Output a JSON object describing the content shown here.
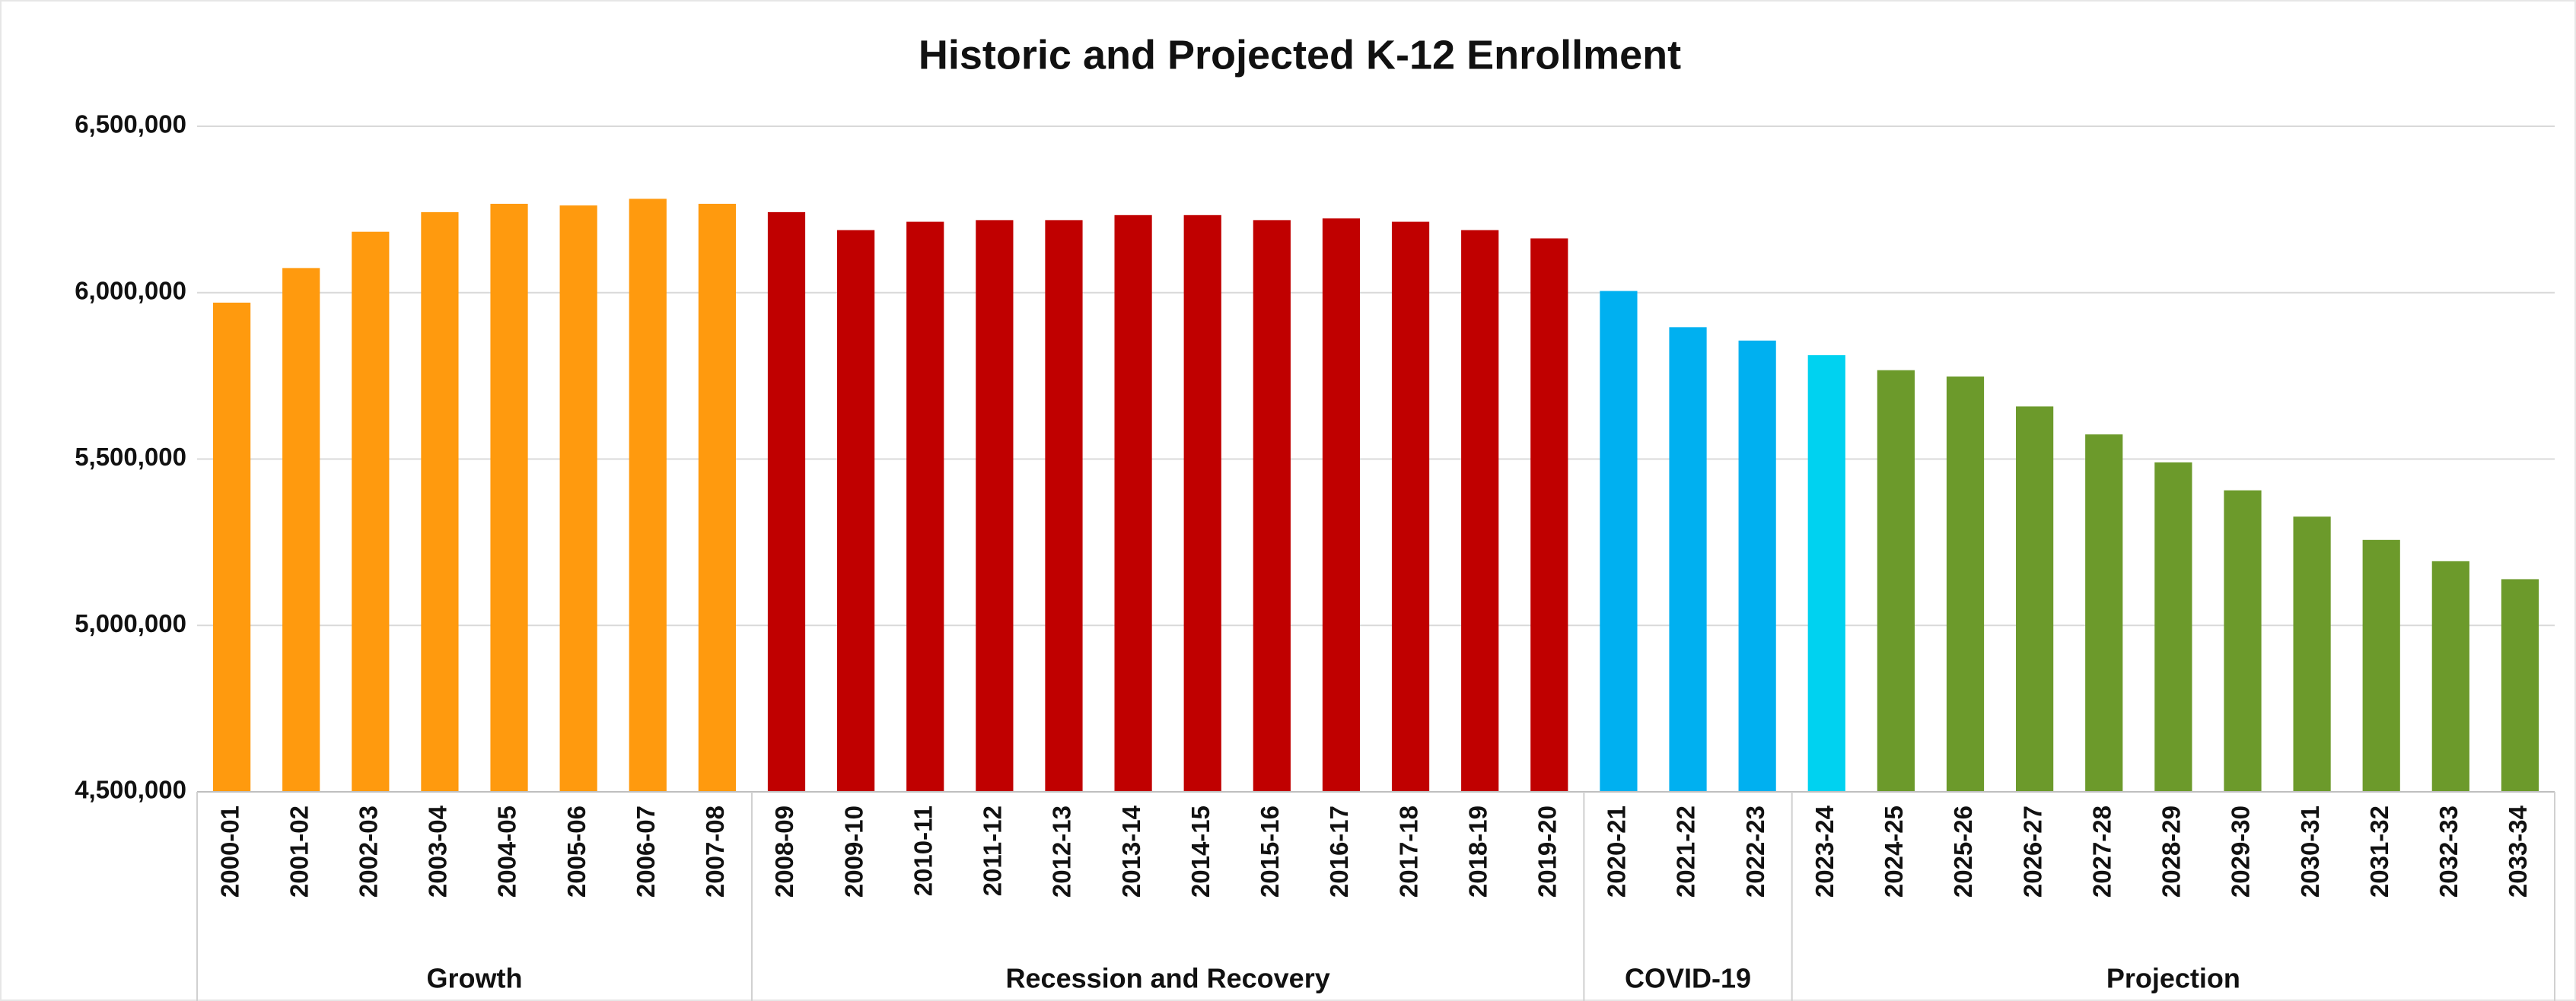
{
  "chart_data": {
    "type": "bar",
    "title": "Historic and Projected K-12 Enrollment",
    "categories": [
      "2000-01",
      "2001-02",
      "2002-03",
      "2003-04",
      "2004-05",
      "2005-06",
      "2006-07",
      "2007-08",
      "2008-09",
      "2009-10",
      "2010-11",
      "2011-12",
      "2012-13",
      "2013-14",
      "2014-15",
      "2015-16",
      "2016-17",
      "2017-18",
      "2018-19",
      "2019-20",
      "2020-21",
      "2021-22",
      "2022-23",
      "2023-24",
      "2024-25",
      "2025-26",
      "2026-27",
      "2027-28",
      "2028-29",
      "2029-30",
      "2030-31",
      "2031-32",
      "2032-33",
      "2033-34"
    ],
    "values": [
      5970000,
      6074000,
      6183000,
      6242000,
      6267000,
      6262000,
      6282000,
      6267000,
      6242000,
      6188000,
      6213000,
      6218000,
      6218000,
      6233000,
      6233000,
      6218000,
      6223000,
      6213000,
      6188000,
      6163000,
      6005000,
      5896000,
      5856000,
      5812000,
      5767000,
      5748000,
      5658000,
      5574000,
      5490000,
      5406000,
      5327000,
      5257000,
      5193000,
      5139000
    ],
    "colors": [
      "#ff9a0e",
      "#ff9a0e",
      "#ff9a0e",
      "#ff9a0e",
      "#ff9a0e",
      "#ff9a0e",
      "#ff9a0e",
      "#ff9a0e",
      "#c00000",
      "#c00000",
      "#c00000",
      "#c00000",
      "#c00000",
      "#c00000",
      "#c00000",
      "#c00000",
      "#c00000",
      "#c00000",
      "#c00000",
      "#c00000",
      "#00b0f0",
      "#00b0f0",
      "#00b0f0",
      "#00d2f0",
      "#6c9a2b",
      "#6c9a2b",
      "#6c9a2b",
      "#6c9a2b",
      "#6c9a2b",
      "#6c9a2b",
      "#6c9a2b",
      "#6c9a2b",
      "#6c9a2b",
      "#6c9a2b"
    ],
    "groups": [
      {
        "name": "Growth",
        "size": 8
      },
      {
        "name": "Recession and Recovery",
        "size": 12
      },
      {
        "name": "COVID-19",
        "size": 3
      },
      {
        "name": "Projection",
        "size": 11
      }
    ],
    "ylim": [
      4500000,
      6500000
    ],
    "yticks": [
      {
        "value": 4500000,
        "label": "4,500,000"
      },
      {
        "value": 5000000,
        "label": "5,000,000"
      },
      {
        "value": 5500000,
        "label": "5,500,000"
      },
      {
        "value": 6000000,
        "label": "6,000,000"
      },
      {
        "value": 6500000,
        "label": "6,500,000"
      }
    ],
    "grid": true
  }
}
